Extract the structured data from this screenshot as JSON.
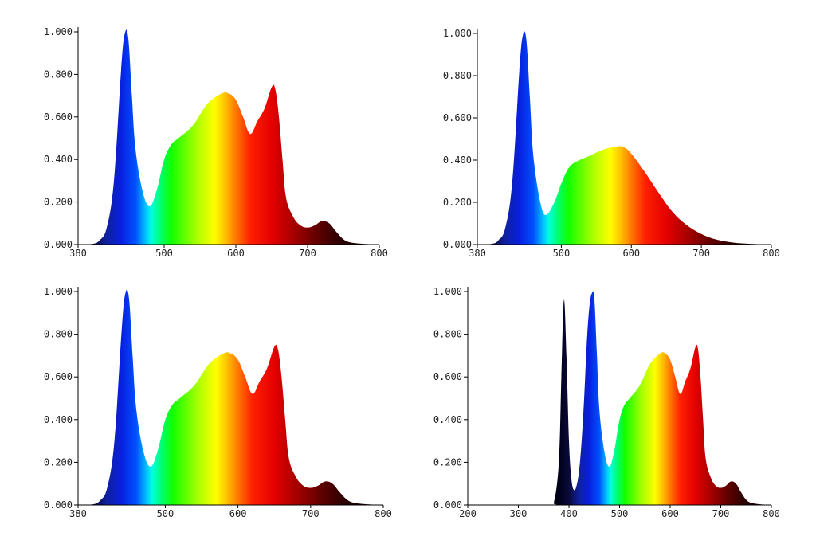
{
  "spectrum_colors": [
    {
      "nm": 380,
      "color": "#000018"
    },
    {
      "nm": 400,
      "color": "#0a0a3a"
    },
    {
      "nm": 420,
      "color": "#1020a0"
    },
    {
      "nm": 440,
      "color": "#0820e0"
    },
    {
      "nm": 460,
      "color": "#0050ff"
    },
    {
      "nm": 475,
      "color": "#00c8ff"
    },
    {
      "nm": 482,
      "color": "#00ffe0"
    },
    {
      "nm": 495,
      "color": "#00ff70"
    },
    {
      "nm": 510,
      "color": "#10ff00"
    },
    {
      "nm": 545,
      "color": "#a8ff00"
    },
    {
      "nm": 570,
      "color": "#ffff00"
    },
    {
      "nm": 585,
      "color": "#ffc000"
    },
    {
      "nm": 600,
      "color": "#ff7800"
    },
    {
      "nm": 620,
      "color": "#ff2000"
    },
    {
      "nm": 650,
      "color": "#e40000"
    },
    {
      "nm": 680,
      "color": "#a80000"
    },
    {
      "nm": 710,
      "color": "#680000"
    },
    {
      "nm": 745,
      "color": "#2c0000"
    },
    {
      "nm": 800,
      "color": "#000000"
    }
  ],
  "chart_data": [
    {
      "type": "area",
      "title": "",
      "xlabel": "",
      "ylabel": "",
      "xlim": [
        380,
        800
      ],
      "ylim": [
        0,
        1
      ],
      "x_ticks": [
        "380",
        "500",
        "600",
        "700",
        "800"
      ],
      "y_ticks": [
        "0.000",
        "0.200",
        "0.400",
        "0.600",
        "0.800",
        "1.000"
      ],
      "grid": false,
      "x": [
        380,
        400,
        410,
        420,
        430,
        440,
        445,
        450,
        455,
        460,
        470,
        480,
        490,
        500,
        510,
        520,
        540,
        560,
        580,
        590,
        600,
        610,
        620,
        630,
        640,
        650,
        655,
        660,
        665,
        670,
        680,
        690,
        700,
        710,
        720,
        730,
        740,
        750,
        760,
        780,
        800
      ],
      "y": [
        0,
        0.003,
        0.02,
        0.08,
        0.3,
        0.82,
        0.99,
        0.97,
        0.7,
        0.45,
        0.25,
        0.18,
        0.26,
        0.4,
        0.47,
        0.5,
        0.56,
        0.66,
        0.71,
        0.71,
        0.68,
        0.6,
        0.52,
        0.58,
        0.64,
        0.74,
        0.73,
        0.6,
        0.4,
        0.22,
        0.13,
        0.09,
        0.08,
        0.09,
        0.11,
        0.1,
        0.06,
        0.025,
        0.01,
        0.003,
        0
      ]
    },
    {
      "type": "area",
      "title": "",
      "xlabel": "",
      "ylabel": "",
      "xlim": [
        380,
        800
      ],
      "ylim": [
        0,
        1
      ],
      "x_ticks": [
        "380",
        "500",
        "600",
        "700",
        "800"
      ],
      "y_ticks": [
        "0.000",
        "0.200",
        "0.400",
        "0.600",
        "0.800",
        "1.000"
      ],
      "grid": false,
      "x": [
        380,
        400,
        410,
        420,
        430,
        440,
        445,
        450,
        455,
        460,
        470,
        478,
        490,
        500,
        510,
        520,
        540,
        560,
        580,
        590,
        600,
        620,
        640,
        660,
        680,
        700,
        720,
        740,
        760,
        780,
        800
      ],
      "y": [
        0,
        0.003,
        0.02,
        0.08,
        0.3,
        0.82,
        0.99,
        0.97,
        0.7,
        0.42,
        0.2,
        0.14,
        0.2,
        0.29,
        0.36,
        0.39,
        0.42,
        0.45,
        0.465,
        0.46,
        0.43,
        0.34,
        0.24,
        0.15,
        0.09,
        0.05,
        0.025,
        0.012,
        0.005,
        0.002,
        0
      ]
    },
    {
      "type": "area",
      "title": "",
      "xlabel": "",
      "ylabel": "",
      "xlim": [
        380,
        800
      ],
      "ylim": [
        0,
        1
      ],
      "x_ticks": [
        "380",
        "500",
        "600",
        "700",
        "800"
      ],
      "y_ticks": [
        "0.000",
        "0.200",
        "0.400",
        "0.600",
        "0.800",
        "1.000"
      ],
      "grid": false,
      "x": [
        380,
        400,
        410,
        420,
        430,
        440,
        445,
        450,
        455,
        460,
        470,
        480,
        490,
        500,
        510,
        520,
        540,
        560,
        580,
        590,
        600,
        610,
        620,
        630,
        640,
        650,
        655,
        660,
        665,
        670,
        680,
        690,
        700,
        710,
        720,
        730,
        740,
        750,
        760,
        780,
        800
      ],
      "y": [
        0,
        0.003,
        0.02,
        0.08,
        0.3,
        0.82,
        0.99,
        0.97,
        0.7,
        0.45,
        0.25,
        0.18,
        0.26,
        0.4,
        0.47,
        0.5,
        0.56,
        0.66,
        0.71,
        0.71,
        0.68,
        0.6,
        0.52,
        0.58,
        0.64,
        0.74,
        0.73,
        0.6,
        0.4,
        0.22,
        0.13,
        0.09,
        0.08,
        0.09,
        0.11,
        0.1,
        0.06,
        0.025,
        0.01,
        0.003,
        0
      ]
    },
    {
      "type": "area",
      "title": "",
      "xlabel": "",
      "ylabel": "",
      "xlim": [
        200,
        800
      ],
      "ylim": [
        0,
        1
      ],
      "x_ticks": [
        "200",
        "300",
        "400",
        "500",
        "600",
        "700",
        "800"
      ],
      "y_ticks": [
        "0.000",
        "0.200",
        "0.400",
        "0.600",
        "0.800",
        "1.000"
      ],
      "grid": false,
      "x": [
        200,
        360,
        370,
        380,
        385,
        390,
        395,
        400,
        405,
        410,
        415,
        420,
        425,
        430,
        435,
        440,
        445,
        450,
        455,
        460,
        470,
        480,
        490,
        500,
        510,
        520,
        540,
        560,
        580,
        590,
        600,
        610,
        620,
        630,
        640,
        650,
        655,
        660,
        665,
        670,
        680,
        690,
        700,
        710,
        720,
        730,
        740,
        750,
        760,
        780,
        800
      ],
      "y": [
        0,
        0,
        0.01,
        0.2,
        0.6,
        0.96,
        0.7,
        0.3,
        0.12,
        0.07,
        0.09,
        0.16,
        0.3,
        0.5,
        0.75,
        0.92,
        0.99,
        0.97,
        0.72,
        0.45,
        0.25,
        0.18,
        0.26,
        0.4,
        0.47,
        0.5,
        0.56,
        0.66,
        0.71,
        0.71,
        0.68,
        0.6,
        0.52,
        0.58,
        0.64,
        0.74,
        0.73,
        0.6,
        0.4,
        0.22,
        0.13,
        0.09,
        0.08,
        0.09,
        0.11,
        0.1,
        0.06,
        0.025,
        0.01,
        0.003,
        0
      ]
    }
  ]
}
